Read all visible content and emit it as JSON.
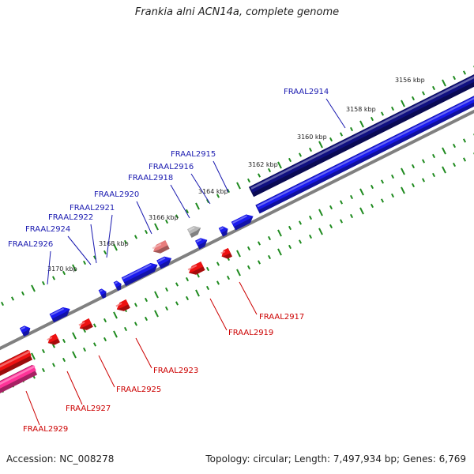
{
  "title": "Frankia alni ACN14a, complete genome",
  "footer": {
    "accession": "Accession: NC_008278",
    "summary": "Topology: circular; Length: 7,497,934 bp; Genes: 6,769"
  },
  "colors": {
    "forward_gene": "#1a1aee",
    "reverse_gene": "#ee1111",
    "selected_forward": "#101080",
    "selected_reverse": "#ff3399",
    "pseudo": "#b8b8b8",
    "faded_red": "#e87c7c",
    "forward_label": "#1a1ab0",
    "reverse_label": "#cc0000",
    "tick": "#1e8a1e",
    "backbone": "#808080"
  },
  "scale": {
    "labels": [
      "3156 kbp",
      "3158 kbp",
      "3160 kbp",
      "3162 kbp",
      "3164 kbp",
      "3166 kbp",
      "3168 kbp",
      "3170 kbp"
    ]
  },
  "forward_labels": [
    "FRAAL2914",
    "FRAAL2915",
    "FRAAL2916",
    "FRAAL2918",
    "FRAAL2920",
    "FRAAL2921",
    "FRAAL2922",
    "FRAAL2924",
    "FRAAL2926"
  ],
  "reverse_labels": [
    "FRAAL2917",
    "FRAAL2919",
    "FRAAL2923",
    "FRAAL2925",
    "FRAAL2927",
    "FRAAL2929"
  ]
}
